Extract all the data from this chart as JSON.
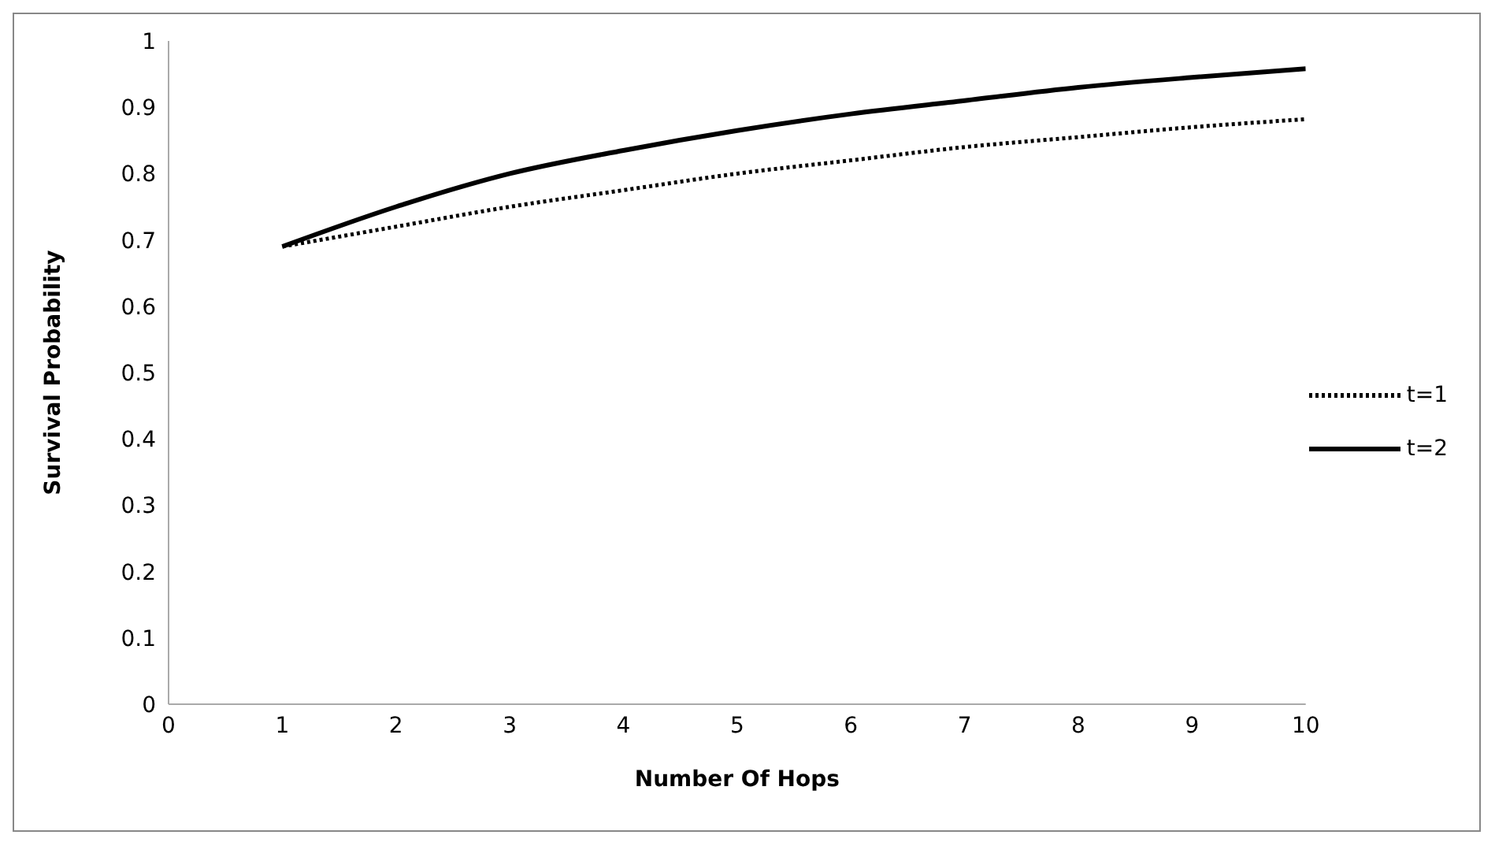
{
  "chart_data": {
    "type": "line",
    "xlabel": "Number Of Hops",
    "ylabel": "Survival Probability",
    "x": [
      1,
      2,
      3,
      4,
      5,
      6,
      7,
      8,
      9,
      10
    ],
    "series": [
      {
        "name": "t=1",
        "color": "#000000",
        "line_style": "dotted",
        "values": [
          0.69,
          0.72,
          0.75,
          0.775,
          0.8,
          0.82,
          0.84,
          0.855,
          0.87,
          0.882
        ]
      },
      {
        "name": "t=2",
        "color": "#000000",
        "line_style": "solid",
        "values": [
          0.69,
          0.75,
          0.8,
          0.835,
          0.865,
          0.89,
          0.91,
          0.93,
          0.945,
          0.958
        ]
      }
    ],
    "xlim": [
      0,
      10
    ],
    "xticks": [
      0,
      1,
      2,
      3,
      4,
      5,
      6,
      7,
      8,
      9,
      10
    ],
    "ylim": [
      0,
      1
    ],
    "yticks": [
      0,
      0.1,
      0.2,
      0.3,
      0.4,
      0.5,
      0.6,
      0.7,
      0.8,
      0.9,
      1
    ],
    "grid": false,
    "legend": "right",
    "marker": "none"
  }
}
